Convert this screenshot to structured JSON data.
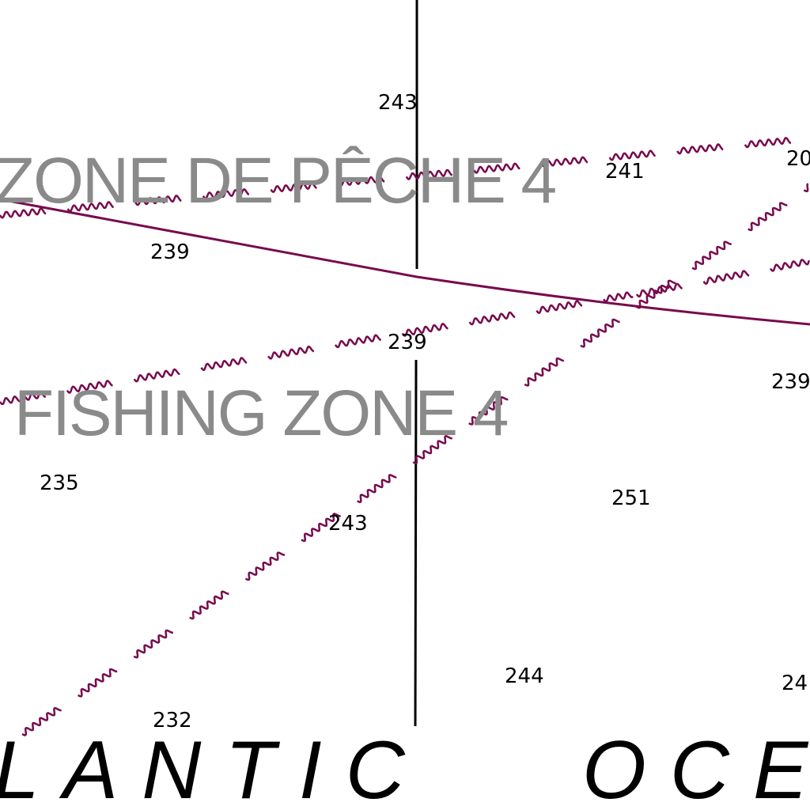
{
  "colors": {
    "boundary": "#780a4e",
    "meridian": "#000000",
    "zone_label": "#8a8a8a",
    "soundings": "#000000"
  },
  "labels": {
    "zone_fr": "ZONE DE PÊCHE 4",
    "zone_en": "FISHING ZONE 4",
    "ocean_part1": "LANTIC",
    "ocean_part2": "OCE"
  },
  "soundings": [
    {
      "id": "s243-top",
      "value": "243"
    },
    {
      "id": "s241",
      "value": "241"
    },
    {
      "id": "s20",
      "value": "20"
    },
    {
      "id": "s239-left",
      "value": "239"
    },
    {
      "id": "s239-center",
      "value": "239"
    },
    {
      "id": "s239-right",
      "value": "239"
    },
    {
      "id": "s235",
      "value": "235"
    },
    {
      "id": "s251",
      "value": "251"
    },
    {
      "id": "s243-mid",
      "value": "243"
    },
    {
      "id": "s244",
      "value": "244"
    },
    {
      "id": "s24",
      "value": "24"
    },
    {
      "id": "s232",
      "value": "232"
    }
  ]
}
